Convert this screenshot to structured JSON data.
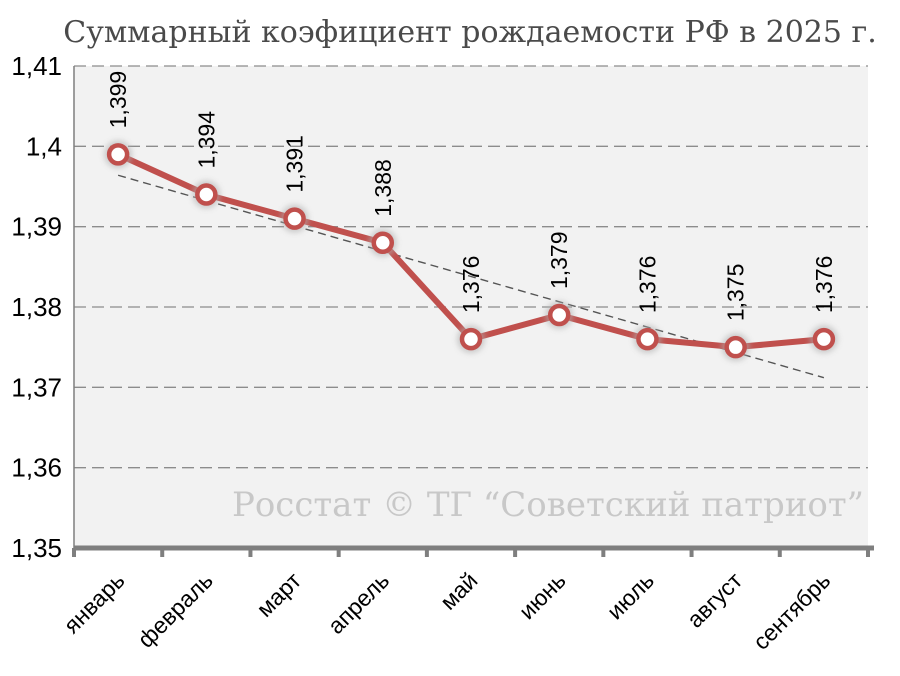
{
  "chart_data": {
    "type": "line",
    "title": "Суммарный коэфициент рождаемости РФ в 2025 г.",
    "categories": [
      "январь",
      "февраль",
      "март",
      "апрель",
      "май",
      "июнь",
      "июль",
      "август",
      "сентябрь"
    ],
    "series": [
      {
        "values": [
          1.399,
          1.394,
          1.391,
          1.388,
          1.376,
          1.379,
          1.376,
          1.375,
          1.376
        ],
        "labels": [
          "1,399",
          "1,394",
          "1,391",
          "1,388",
          "1,376",
          "1,379",
          "1,376",
          "1,375",
          "1,376"
        ],
        "color": "#c0504d"
      }
    ],
    "trendline": {
      "start": 1.3964,
      "end": 1.3712,
      "color": "#555555",
      "style": "dashed"
    },
    "ylim": [
      1.35,
      1.41
    ],
    "yticks": [
      1.35,
      1.36,
      1.37,
      1.38,
      1.39,
      1.4,
      1.41
    ],
    "ytick_labels": [
      "1,35",
      "1,36",
      "1,37",
      "1,38",
      "1,39",
      "1,4",
      "1,41"
    ],
    "grid": true,
    "plot_background": "#f2f2f2",
    "watermark": "Росстат © ТГ “Советский патриот”"
  }
}
